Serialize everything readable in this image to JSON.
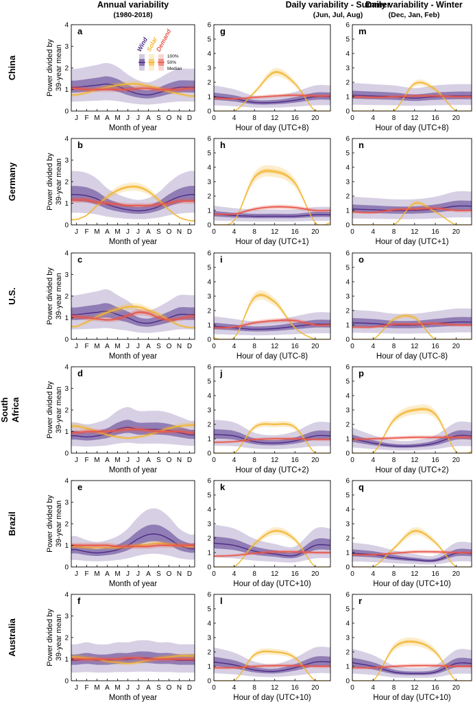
{
  "figure": {
    "col_titles": [
      {
        "title": "Annual variability",
        "subtitle": "(1980-2018)"
      },
      {
        "title": "Daily variability - Summer",
        "subtitle": "(Jun, Jul, Aug)"
      },
      {
        "title": "Daily variability - Winter",
        "subtitle": "(Dec, Jan, Feb)"
      }
    ],
    "row_labels": [
      "China",
      "Germany",
      "U.S.",
      "South Africa",
      "Brazil",
      "Australia"
    ],
    "annual_ylabel": "Power divided by 39-year mean",
    "annual_xlabel": "Month of year",
    "legend": {
      "series": [
        "Wind",
        "Solar",
        "Demand"
      ],
      "bands": [
        "100%",
        "50%",
        "Median"
      ]
    },
    "colors": {
      "wind": "#4b2a86",
      "solar": "#f2b632",
      "demand": "#e8584a"
    }
  },
  "chart_data": [
    {
      "panel": "a",
      "country": "China",
      "type": "area",
      "xlabel": "Month of year",
      "categories": [
        "J",
        "F",
        "M",
        "A",
        "M",
        "J",
        "J",
        "A",
        "S",
        "O",
        "N",
        "D"
      ],
      "ylim": [
        0,
        4
      ],
      "series": [
        {
          "name": "Wind",
          "values": [
            1.1,
            1.15,
            1.2,
            1.25,
            1.15,
            0.95,
            0.8,
            0.75,
            0.85,
            1.0,
            1.1,
            1.1
          ]
        },
        {
          "name": "Solar",
          "values": [
            0.75,
            0.85,
            1.0,
            1.1,
            1.2,
            1.25,
            1.25,
            1.15,
            1.05,
            0.9,
            0.8,
            0.7
          ]
        },
        {
          "name": "Demand",
          "values": [
            1.05,
            1.0,
            1.0,
            1.0,
            1.0,
            1.0,
            1.05,
            1.05,
            1.0,
            1.0,
            1.0,
            1.05
          ]
        }
      ]
    },
    {
      "panel": "g",
      "country": "China",
      "type": "area",
      "xlabel": "Hour of day (UTC+8)",
      "x": [
        0,
        4,
        8,
        12,
        16,
        20
      ],
      "ylim": [
        0,
        6
      ],
      "series": [
        {
          "name": "Wind",
          "values": [
            1.0,
            0.85,
            0.6,
            0.6,
            0.75,
            1.0
          ]
        },
        {
          "name": "Solar",
          "values": [
            0,
            0,
            1.3,
            2.7,
            1.9,
            0
          ]
        },
        {
          "name": "Demand",
          "values": [
            0.9,
            0.85,
            0.95,
            1.05,
            1.1,
            1.05
          ]
        }
      ]
    },
    {
      "panel": "m",
      "country": "China",
      "type": "area",
      "xlabel": "Hour of day (UTC+8)",
      "x": [
        0,
        4,
        8,
        12,
        16,
        20
      ],
      "ylim": [
        0,
        6
      ],
      "series": [
        {
          "name": "Wind",
          "values": [
            1.1,
            1.05,
            1.0,
            0.9,
            1.0,
            1.05
          ]
        },
        {
          "name": "Solar",
          "values": [
            0,
            0,
            0,
            1.9,
            1.5,
            0
          ]
        },
        {
          "name": "Demand",
          "values": [
            1.0,
            0.95,
            1.0,
            1.05,
            1.05,
            1.0
          ]
        }
      ]
    },
    {
      "panel": "b",
      "country": "Germany",
      "type": "area",
      "xlabel": "Month of year",
      "categories": [
        "J",
        "F",
        "M",
        "A",
        "M",
        "J",
        "J",
        "A",
        "S",
        "O",
        "N",
        "D"
      ],
      "ylim": [
        0,
        4
      ],
      "series": [
        {
          "name": "Wind",
          "values": [
            1.4,
            1.35,
            1.2,
            0.95,
            0.8,
            0.7,
            0.65,
            0.7,
            0.85,
            1.1,
            1.3,
            1.4
          ]
        },
        {
          "name": "Solar",
          "values": [
            0.25,
            0.45,
            0.9,
            1.3,
            1.6,
            1.75,
            1.75,
            1.55,
            1.15,
            0.7,
            0.35,
            0.2
          ]
        },
        {
          "name": "Demand",
          "values": [
            1.15,
            1.15,
            1.05,
            1.0,
            0.95,
            0.9,
            0.9,
            0.9,
            0.95,
            1.0,
            1.1,
            1.1
          ]
        }
      ]
    },
    {
      "panel": "h",
      "country": "Germany",
      "type": "area",
      "xlabel": "Hour of day (UTC+1)",
      "x": [
        0,
        4,
        8,
        12,
        16,
        20
      ],
      "ylim": [
        0,
        6
      ],
      "series": [
        {
          "name": "Wind",
          "values": [
            0.75,
            0.65,
            0.6,
            0.6,
            0.6,
            0.7
          ]
        },
        {
          "name": "Solar",
          "values": [
            0,
            0.3,
            3.3,
            3.7,
            2.9,
            0.15
          ]
        },
        {
          "name": "Demand",
          "values": [
            0.75,
            0.75,
            1.1,
            1.25,
            1.2,
            1.0
          ]
        }
      ]
    },
    {
      "panel": "n",
      "country": "Germany",
      "type": "area",
      "xlabel": "Hour of day (UTC+1)",
      "x": [
        0,
        4,
        8,
        12,
        16,
        20
      ],
      "ylim": [
        0,
        6
      ],
      "series": [
        {
          "name": "Wind",
          "values": [
            1.1,
            1.05,
            1.0,
            1.0,
            1.1,
            1.3
          ]
        },
        {
          "name": "Solar",
          "values": [
            0,
            0,
            0,
            1.5,
            0.9,
            0
          ]
        },
        {
          "name": "Demand",
          "values": [
            0.9,
            0.85,
            1.05,
            1.1,
            1.15,
            1.0
          ]
        }
      ]
    },
    {
      "panel": "c",
      "country": "U.S.",
      "type": "area",
      "xlabel": "Month of year",
      "categories": [
        "J",
        "F",
        "M",
        "A",
        "M",
        "J",
        "J",
        "A",
        "S",
        "O",
        "N",
        "D"
      ],
      "ylim": [
        0,
        4
      ],
      "series": [
        {
          "name": "Wind",
          "values": [
            1.15,
            1.2,
            1.25,
            1.3,
            1.15,
            1.0,
            0.8,
            0.75,
            0.85,
            1.0,
            1.15,
            1.15
          ]
        },
        {
          "name": "Solar",
          "values": [
            0.6,
            0.8,
            1.05,
            1.25,
            1.4,
            1.5,
            1.5,
            1.35,
            1.15,
            0.9,
            0.65,
            0.55
          ]
        },
        {
          "name": "Demand",
          "values": [
            1.05,
            1.0,
            0.95,
            0.9,
            0.95,
            1.1,
            1.25,
            1.2,
            1.0,
            0.9,
            0.95,
            1.05
          ]
        }
      ]
    },
    {
      "panel": "i",
      "country": "U.S.",
      "type": "area",
      "xlabel": "Hour of day (UTC-8)",
      "x": [
        0,
        4,
        8,
        12,
        16,
        20
      ],
      "ylim": [
        0,
        6
      ],
      "series": [
        {
          "name": "Wind",
          "values": [
            0.9,
            0.8,
            0.7,
            0.75,
            0.9,
            1.05
          ]
        },
        {
          "name": "Solar",
          "values": [
            0.1,
            0.1,
            2.9,
            2.6,
            0.8,
            0
          ]
        },
        {
          "name": "Demand",
          "values": [
            0.8,
            0.85,
            1.15,
            1.3,
            1.3,
            1.0
          ]
        }
      ]
    },
    {
      "panel": "o",
      "country": "U.S.",
      "type": "area",
      "xlabel": "Hour of day (UTC-8)",
      "x": [
        0,
        4,
        8,
        12,
        16,
        20
      ],
      "ylim": [
        0,
        6
      ],
      "series": [
        {
          "name": "Wind",
          "values": [
            1.15,
            1.1,
            1.0,
            1.0,
            1.1,
            1.2
          ]
        },
        {
          "name": "Solar",
          "values": [
            0,
            0,
            1.4,
            1.5,
            0,
            0
          ]
        },
        {
          "name": "Demand",
          "values": [
            0.85,
            0.85,
            1.05,
            1.05,
            1.1,
            1.0
          ]
        }
      ]
    },
    {
      "panel": "d",
      "country": "South Africa",
      "type": "area",
      "xlabel": "Month of year",
      "categories": [
        "J",
        "F",
        "M",
        "A",
        "M",
        "J",
        "J",
        "A",
        "S",
        "O",
        "N",
        "D"
      ],
      "ylim": [
        0,
        4
      ],
      "series": [
        {
          "name": "Wind",
          "values": [
            0.8,
            0.75,
            0.8,
            0.9,
            1.1,
            1.2,
            1.1,
            1.1,
            1.1,
            1.05,
            0.95,
            0.85
          ]
        },
        {
          "name": "Solar",
          "values": [
            1.25,
            1.15,
            1.0,
            0.85,
            0.75,
            0.7,
            0.75,
            0.85,
            1.0,
            1.15,
            1.25,
            1.3
          ]
        },
        {
          "name": "Demand",
          "values": [
            0.95,
            1.0,
            1.0,
            1.0,
            1.05,
            1.1,
            1.1,
            1.05,
            1.0,
            1.0,
            1.0,
            0.95
          ]
        }
      ]
    },
    {
      "panel": "j",
      "country": "South Africa",
      "type": "area",
      "xlabel": "Hour of day (UTC+2)",
      "x": [
        0,
        4,
        8,
        12,
        16,
        20
      ],
      "ylim": [
        0,
        6
      ],
      "series": [
        {
          "name": "Wind",
          "values": [
            1.3,
            1.2,
            0.8,
            0.7,
            0.85,
            1.2
          ]
        },
        {
          "name": "Solar",
          "values": [
            0,
            0,
            1.8,
            2.0,
            1.8,
            0
          ]
        },
        {
          "name": "Demand",
          "values": [
            0.75,
            0.8,
            0.95,
            1.0,
            1.0,
            0.95
          ]
        }
      ]
    },
    {
      "panel": "p",
      "country": "South Africa",
      "type": "area",
      "xlabel": "Hour of day (UTC+2)",
      "x": [
        0,
        4,
        8,
        12,
        16,
        20
      ],
      "ylim": [
        0,
        6
      ],
      "series": [
        {
          "name": "Wind",
          "values": [
            1.0,
            0.7,
            0.5,
            0.5,
            0.7,
            1.2
          ]
        },
        {
          "name": "Solar",
          "values": [
            0,
            0,
            2.3,
            3.0,
            2.7,
            0.1
          ]
        },
        {
          "name": "Demand",
          "values": [
            0.95,
            1.0,
            1.05,
            1.1,
            1.1,
            1.1
          ]
        }
      ]
    },
    {
      "panel": "e",
      "country": "Brazil",
      "type": "area",
      "xlabel": "Month of year",
      "categories": [
        "J",
        "F",
        "M",
        "A",
        "M",
        "J",
        "J",
        "A",
        "S",
        "O",
        "N",
        "D"
      ],
      "ylim": [
        0,
        4
      ],
      "series": [
        {
          "name": "Wind",
          "values": [
            0.8,
            0.7,
            0.65,
            0.7,
            0.8,
            1.0,
            1.3,
            1.5,
            1.5,
            1.3,
            1.0,
            0.85
          ]
        },
        {
          "name": "Solar",
          "values": [
            0.95,
            0.9,
            0.9,
            0.9,
            0.9,
            0.95,
            1.0,
            1.05,
            1.1,
            1.05,
            1.0,
            0.95
          ]
        },
        {
          "name": "Demand",
          "values": [
            1.0,
            1.0,
            1.0,
            1.0,
            0.95,
            0.95,
            0.95,
            0.95,
            1.0,
            1.0,
            1.0,
            1.0
          ]
        }
      ]
    },
    {
      "panel": "k",
      "country": "Brazil",
      "type": "area",
      "xlabel": "Hour of day (UTC+10)",
      "x": [
        0,
        4,
        8,
        12,
        16,
        20
      ],
      "ylim": [
        0,
        6
      ],
      "series": [
        {
          "name": "Wind",
          "values": [
            1.65,
            1.5,
            1.1,
            0.9,
            0.8,
            1.5
          ]
        },
        {
          "name": "Solar",
          "values": [
            0,
            0,
            1.6,
            2.5,
            1.9,
            0
          ]
        },
        {
          "name": "Demand",
          "values": [
            0.75,
            0.8,
            0.95,
            1.05,
            1.05,
            1.0
          ]
        }
      ]
    },
    {
      "panel": "q",
      "country": "Brazil",
      "type": "area",
      "xlabel": "Hour of day (UTC+10)",
      "x": [
        0,
        4,
        8,
        12,
        16,
        20
      ],
      "ylim": [
        0,
        6
      ],
      "series": [
        {
          "name": "Wind",
          "values": [
            0.95,
            0.85,
            0.65,
            0.5,
            0.45,
            0.95
          ]
        },
        {
          "name": "Solar",
          "values": [
            0,
            0,
            1.3,
            2.5,
            1.7,
            0
          ]
        },
        {
          "name": "Demand",
          "values": [
            0.85,
            0.85,
            0.95,
            1.05,
            1.05,
            1.0
          ]
        }
      ]
    },
    {
      "panel": "f",
      "country": "Australia",
      "type": "area",
      "xlabel": "Month of year",
      "categories": [
        "J",
        "F",
        "M",
        "A",
        "M",
        "J",
        "J",
        "A",
        "S",
        "O",
        "N",
        "D"
      ],
      "ylim": [
        0,
        4
      ],
      "series": [
        {
          "name": "Wind",
          "values": [
            0.95,
            1.0,
            0.95,
            0.95,
            1.0,
            1.0,
            1.05,
            1.05,
            1.0,
            1.0,
            0.95,
            0.95
          ]
        },
        {
          "name": "Solar",
          "values": [
            1.1,
            1.05,
            1.0,
            0.9,
            0.85,
            0.8,
            0.85,
            0.95,
            1.05,
            1.1,
            1.15,
            1.15
          ]
        },
        {
          "name": "Demand",
          "values": [
            1.0,
            1.0,
            1.0,
            1.0,
            1.0,
            1.05,
            1.05,
            1.0,
            1.0,
            1.0,
            1.0,
            1.0
          ]
        }
      ]
    },
    {
      "panel": "l",
      "country": "Australia",
      "type": "area",
      "xlabel": "Hour of day (UTC+10)",
      "x": [
        0,
        4,
        8,
        12,
        16,
        20
      ],
      "ylim": [
        0,
        6
      ],
      "series": [
        {
          "name": "Wind",
          "values": [
            1.3,
            1.1,
            0.75,
            0.65,
            0.9,
            1.3
          ]
        },
        {
          "name": "Solar",
          "values": [
            0,
            0,
            1.8,
            2.0,
            1.6,
            0
          ]
        },
        {
          "name": "Demand",
          "values": [
            0.9,
            0.9,
            1.0,
            1.05,
            1.05,
            1.0
          ]
        }
      ]
    },
    {
      "panel": "r",
      "country": "Australia",
      "type": "area",
      "xlabel": "Hour of day (UTC+10)",
      "x": [
        0,
        4,
        8,
        12,
        16,
        20
      ],
      "ylim": [
        0,
        6
      ],
      "series": [
        {
          "name": "Wind",
          "values": [
            1.25,
            1.0,
            0.6,
            0.5,
            0.6,
            1.2
          ]
        },
        {
          "name": "Solar",
          "values": [
            0,
            0,
            2.3,
            2.7,
            2.0,
            0
          ]
        },
        {
          "name": "Demand",
          "values": [
            0.9,
            0.9,
            1.0,
            1.05,
            1.05,
            1.0
          ]
        }
      ]
    }
  ]
}
